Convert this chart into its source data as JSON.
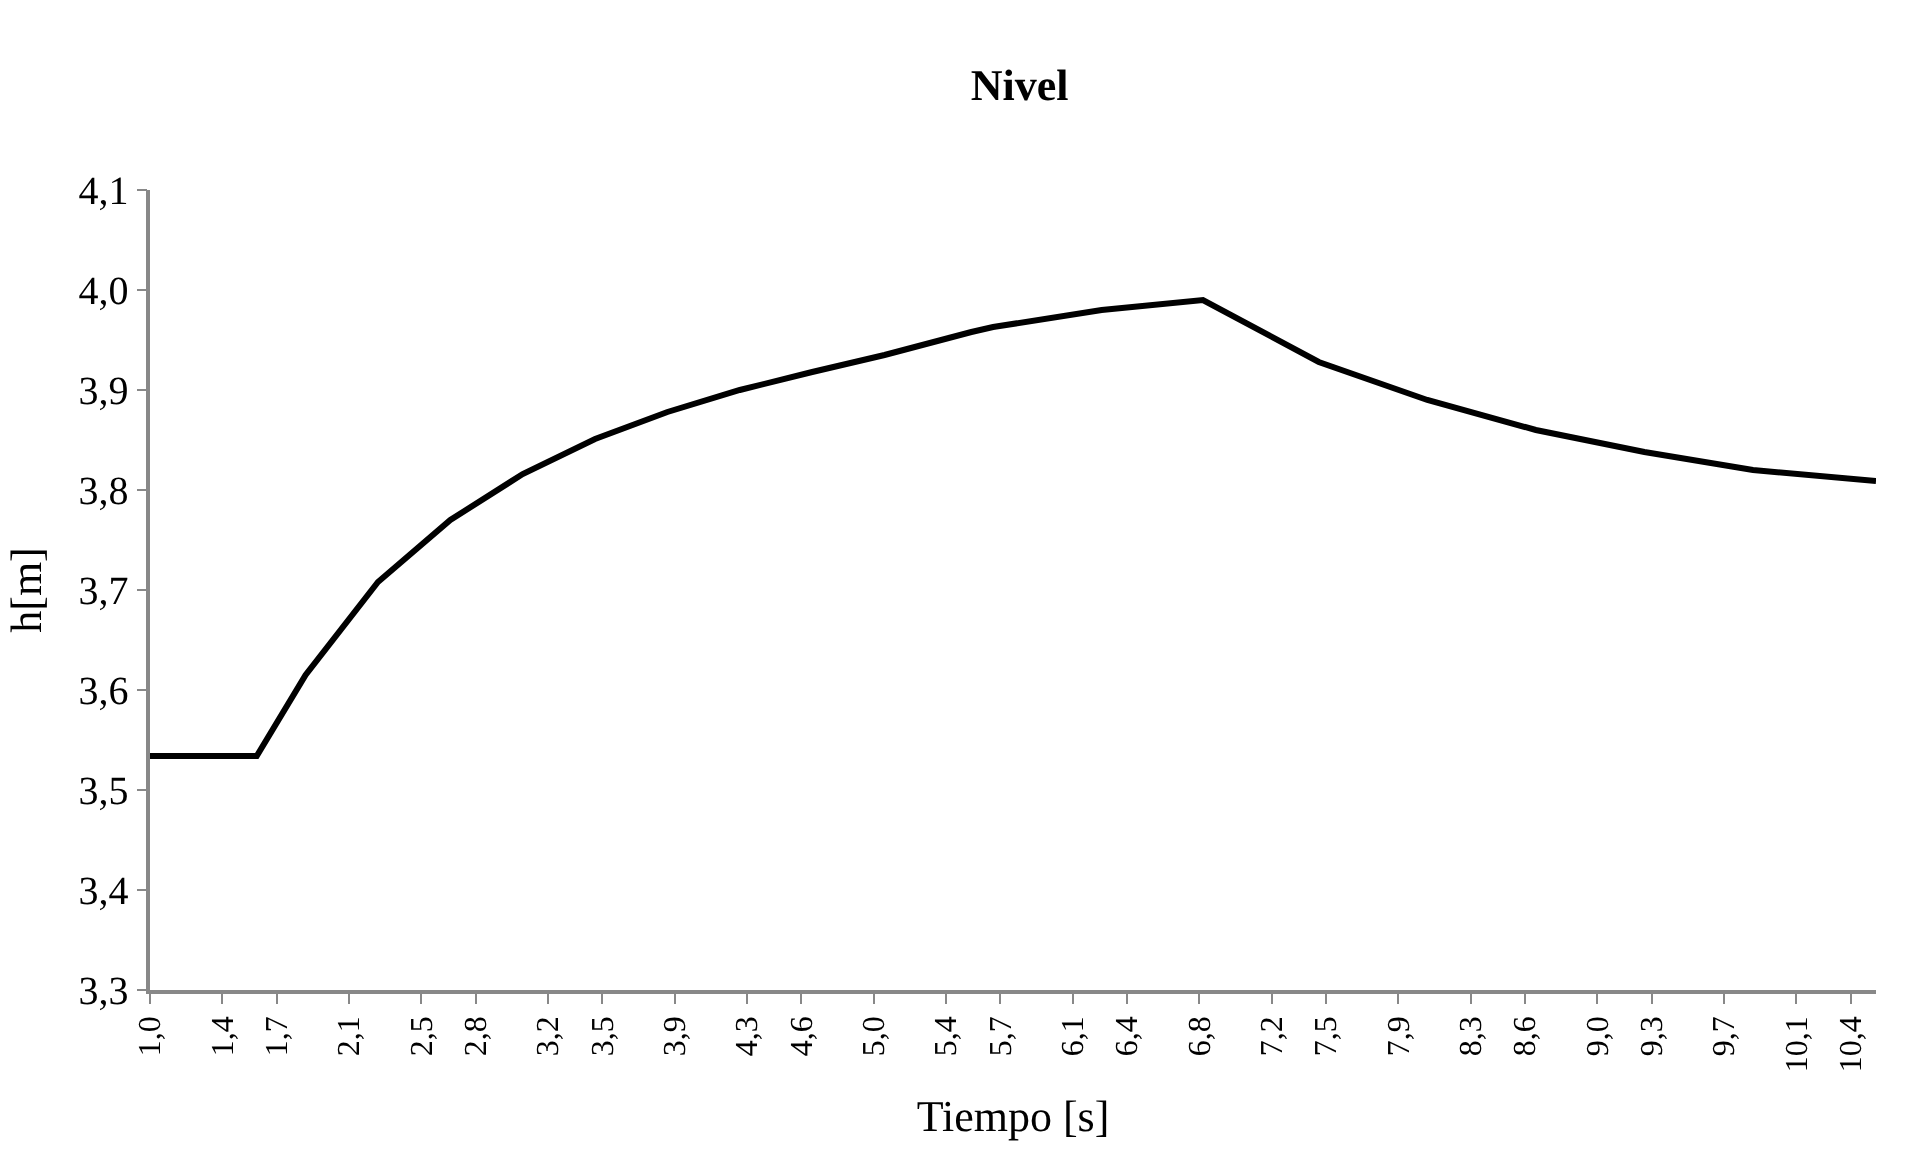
{
  "chart_data": {
    "type": "line",
    "title": "Nivel",
    "xlabel": "Tiempo [s]",
    "ylabel": "h[m]",
    "grid": false,
    "marker": "none",
    "line_style": "solid",
    "x": [
      1.0,
      1.59,
      1.86,
      2.26,
      2.66,
      3.06,
      3.46,
      3.86,
      4.26,
      4.66,
      5.06,
      5.54,
      5.66,
      6.26,
      6.82,
      7.46,
      8.06,
      8.66,
      9.26,
      9.86,
      10.54
    ],
    "series": [
      {
        "color": "#000000",
        "values": [
          3.534,
          3.534,
          3.615,
          3.708,
          3.77,
          3.816,
          3.851,
          3.878,
          3.9,
          3.918,
          3.935,
          3.958,
          3.963,
          3.98,
          3.99,
          3.928,
          3.89,
          3.86,
          3.838,
          3.82,
          3.809
        ]
      }
    ],
    "xlim": [
      1.0,
      10.54
    ],
    "xticks": [
      {
        "value": 1.0,
        "label": "1,0"
      },
      {
        "value": 1.4,
        "label": "1,4"
      },
      {
        "value": 1.7,
        "label": "1,7"
      },
      {
        "value": 2.1,
        "label": "2,1"
      },
      {
        "value": 2.5,
        "label": "2,5"
      },
      {
        "value": 2.8,
        "label": "2,8"
      },
      {
        "value": 3.2,
        "label": "3,2"
      },
      {
        "value": 3.5,
        "label": "3,5"
      },
      {
        "value": 3.9,
        "label": "3,9"
      },
      {
        "value": 4.3,
        "label": "4,3"
      },
      {
        "value": 4.6,
        "label": "4,6"
      },
      {
        "value": 5.0,
        "label": "5,0"
      },
      {
        "value": 5.4,
        "label": "5,4"
      },
      {
        "value": 5.7,
        "label": "5,7"
      },
      {
        "value": 6.1,
        "label": "6,1"
      },
      {
        "value": 6.4,
        "label": "6,4"
      },
      {
        "value": 6.8,
        "label": "6,8"
      },
      {
        "value": 7.2,
        "label": "7,2"
      },
      {
        "value": 7.5,
        "label": "7,5"
      },
      {
        "value": 7.9,
        "label": "7,9"
      },
      {
        "value": 8.3,
        "label": "8,3"
      },
      {
        "value": 8.6,
        "label": "8,6"
      },
      {
        "value": 9.0,
        "label": "9,0"
      },
      {
        "value": 9.3,
        "label": "9,3"
      },
      {
        "value": 9.7,
        "label": "9,7"
      },
      {
        "value": 10.1,
        "label": "10,1"
      },
      {
        "value": 10.4,
        "label": "10,4"
      }
    ],
    "ylim": [
      3.3,
      4.1
    ],
    "yticks": [
      {
        "value": 3.3,
        "label": "3,3"
      },
      {
        "value": 3.4,
        "label": "3,4"
      },
      {
        "value": 3.5,
        "label": "3,5"
      },
      {
        "value": 3.6,
        "label": "3,6"
      },
      {
        "value": 3.7,
        "label": "3,7"
      },
      {
        "value": 3.8,
        "label": "3,8"
      },
      {
        "value": 3.9,
        "label": "3,9"
      },
      {
        "value": 4.0,
        "label": "4,0"
      },
      {
        "value": 4.1,
        "label": "4,1"
      }
    ]
  }
}
